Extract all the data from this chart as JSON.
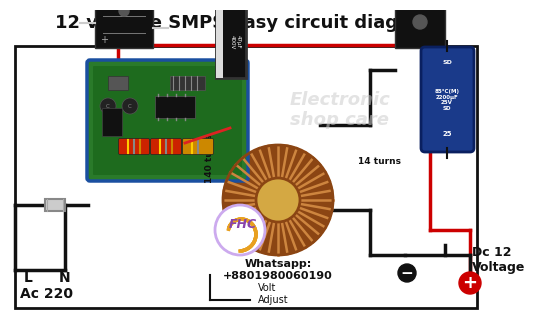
{
  "title": "12 voltage SMPS easy circuit diagram",
  "title_fontsize": 13,
  "bg_color": "#ffffff",
  "red": "#cc0000",
  "black": "#111111",
  "blue_cap_color": "#1a3a8a",
  "pcb_blue": "#1a6e4a",
  "pcb_border": "#1a4fa0",
  "copper_dark": "#8B4513",
  "copper_mid": "#b5651d",
  "copper_light": "#cd853f",
  "toroid_center": "#d4a843",
  "fuse_color": "#cccccc",
  "label_L": "L",
  "label_N": "N",
  "label_ac": "Ac 220",
  "label_turns140": "140 turns",
  "label_turns14": "14 turns",
  "label_dc": "Dc 12\nVoltage",
  "label_volt": "Volt\nAdjust",
  "label_whatsapp": "Whatsapp:\n+8801980060190",
  "watermark1": "Electronic",
  "watermark2": "shop care"
}
